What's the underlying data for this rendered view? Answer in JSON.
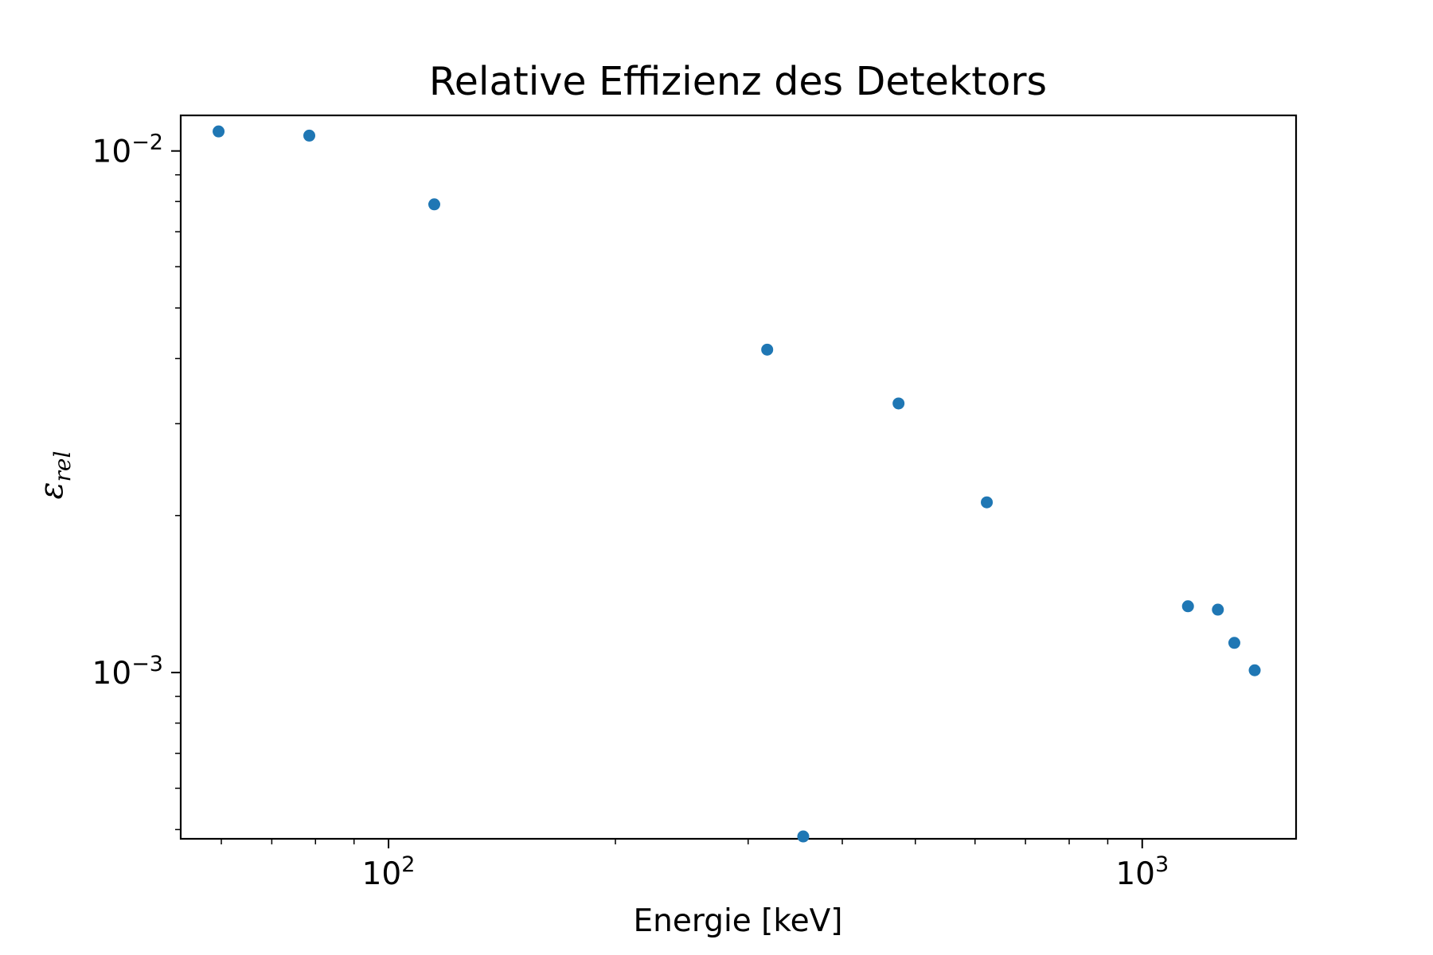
{
  "chart_data": {
    "type": "scatter",
    "title": "Relative Effizienz des Detektors",
    "xlabel": "Energie [keV]",
    "ylabel": {
      "symbol": "ε",
      "subscript": "rel"
    },
    "xscale": "log",
    "yscale": "log",
    "xlim": [
      53,
      1600
    ],
    "ylim": [
      0.00048,
      0.0117
    ],
    "x_ticks": [
      {
        "value": 100,
        "base": "10",
        "exp": "2"
      },
      {
        "value": 1000,
        "base": "10",
        "exp": "3"
      }
    ],
    "y_ticks": [
      {
        "value": 0.01,
        "base": "10",
        "exp": "−2"
      },
      {
        "value": 0.001,
        "base": "10",
        "exp": "−3"
      }
    ],
    "grid": false,
    "marker_color": "#1f77b4",
    "x": [
      59.5,
      78.5,
      115.0,
      318.0,
      355.0,
      475.0,
      622.0,
      1150.0,
      1260.0,
      1325.0,
      1410.0
    ],
    "y": [
      0.0109,
      0.0107,
      0.0079,
      0.00416,
      0.000485,
      0.00328,
      0.00212,
      0.00134,
      0.00132,
      0.00114,
      0.00101
    ]
  }
}
